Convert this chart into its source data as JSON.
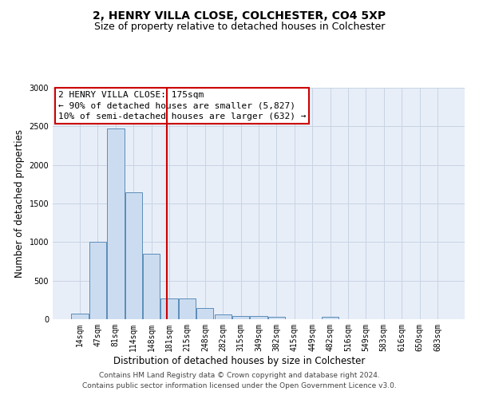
{
  "title_line1": "2, HENRY VILLA CLOSE, COLCHESTER, CO4 5XP",
  "title_line2": "Size of property relative to detached houses in Colchester",
  "xlabel": "Distribution of detached houses by size in Colchester",
  "ylabel": "Number of detached properties",
  "property_label": "2 HENRY VILLA CLOSE: 175sqm",
  "annotation_line1": "← 90% of detached houses are smaller (5,827)",
  "annotation_line2": "10% of semi-detached houses are larger (632) →",
  "footer_line1": "Contains HM Land Registry data © Crown copyright and database right 2024.",
  "footer_line2": "Contains public sector information licensed under the Open Government Licence v3.0.",
  "bin_labels": [
    "14sqm",
    "47sqm",
    "81sqm",
    "114sqm",
    "148sqm",
    "181sqm",
    "215sqm",
    "248sqm",
    "282sqm",
    "315sqm",
    "349sqm",
    "382sqm",
    "415sqm",
    "449sqm",
    "482sqm",
    "516sqm",
    "549sqm",
    "583sqm",
    "616sqm",
    "650sqm",
    "683sqm"
  ],
  "bin_values": [
    70,
    1000,
    2470,
    1650,
    850,
    270,
    270,
    140,
    65,
    45,
    45,
    30,
    0,
    0,
    30,
    0,
    0,
    0,
    0,
    0,
    0
  ],
  "bar_color": "#ccdcf0",
  "bar_edge_color": "#5b8db8",
  "vline_x_index": 4.85,
  "vline_color": "#cc0000",
  "grid_color": "#c8d4e4",
  "background_color": "#e8eef8",
  "ylim": [
    0,
    3000
  ],
  "yticks": [
    0,
    500,
    1000,
    1500,
    2000,
    2500,
    3000
  ],
  "annotation_box_color": "#cc0000",
  "title_fontsize": 10,
  "subtitle_fontsize": 9,
  "axis_label_fontsize": 8.5,
  "tick_fontsize": 7,
  "annotation_fontsize": 8,
  "footer_fontsize": 6.5
}
